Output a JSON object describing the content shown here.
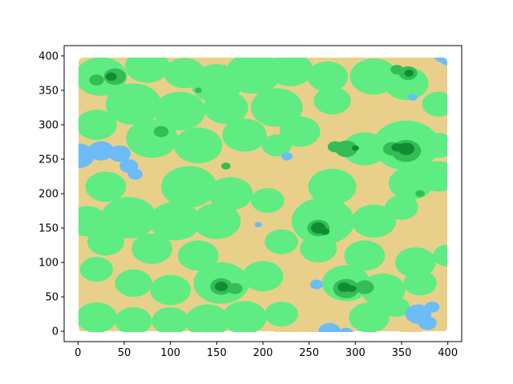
{
  "chart_data": {
    "type": "heatmap",
    "title": "",
    "xlabel": "",
    "ylabel": "",
    "xlim": [
      -15,
      415
    ],
    "ylim": [
      -15,
      415
    ],
    "x_ticks": [
      0,
      50,
      100,
      150,
      200,
      250,
      300,
      350,
      400
    ],
    "y_ticks": [
      0,
      50,
      100,
      150,
      200,
      250,
      300,
      350,
      400
    ],
    "grid": false,
    "legend": "none",
    "extent": [
      0,
      400,
      0,
      400
    ],
    "terrain_levels": [
      {
        "name": "water",
        "color": "#6cbcf7"
      },
      {
        "name": "sand",
        "color": "#e9d08a"
      },
      {
        "name": "grass",
        "color": "#5eec83"
      },
      {
        "name": "forest",
        "color": "#34bd55"
      },
      {
        "name": "dense-forest",
        "color": "#118c35"
      }
    ],
    "features": {
      "water": [
        {
          "x": 0,
          "y": 255,
          "r": 18
        },
        {
          "x": 25,
          "y": 262,
          "r": 14
        },
        {
          "x": 45,
          "y": 258,
          "r": 12
        },
        {
          "x": 55,
          "y": 240,
          "r": 10
        },
        {
          "x": 62,
          "y": 228,
          "r": 8
        },
        {
          "x": 395,
          "y": 400,
          "r": 10
        },
        {
          "x": 400,
          "y": 394,
          "r": 8
        },
        {
          "x": 368,
          "y": 25,
          "r": 14
        },
        {
          "x": 378,
          "y": 12,
          "r": 10
        },
        {
          "x": 383,
          "y": 35,
          "r": 8
        },
        {
          "x": 272,
          "y": 0,
          "r": 12
        },
        {
          "x": 290,
          "y": -3,
          "r": 8
        },
        {
          "x": 226,
          "y": 254,
          "r": 6
        },
        {
          "x": 258,
          "y": 68,
          "r": 7
        },
        {
          "x": 362,
          "y": 340,
          "r": 5
        },
        {
          "x": 195,
          "y": 155,
          "r": 4
        }
      ],
      "sand": [
        {
          "x": 0,
          "y": 100,
          "r": 42
        },
        {
          "x": 15,
          "y": 40,
          "r": 30
        },
        {
          "x": 70,
          "y": 235,
          "r": 24
        },
        {
          "x": 40,
          "y": 300,
          "r": 22
        },
        {
          "x": 210,
          "y": 230,
          "r": 45
        },
        {
          "x": 195,
          "y": 110,
          "r": 28
        },
        {
          "x": 240,
          "y": 0,
          "r": 28
        },
        {
          "x": 400,
          "y": 40,
          "r": 40
        },
        {
          "x": 360,
          "y": 20,
          "r": 24
        },
        {
          "x": 400,
          "y": 150,
          "r": 30
        },
        {
          "x": 330,
          "y": 300,
          "r": 28
        },
        {
          "x": 395,
          "y": 390,
          "r": 22
        },
        {
          "x": 350,
          "y": 395,
          "r": 22
        },
        {
          "x": 240,
          "y": 395,
          "r": 22
        },
        {
          "x": 290,
          "y": 250,
          "r": 18
        },
        {
          "x": 170,
          "y": 300,
          "r": 20
        },
        {
          "x": 260,
          "y": 300,
          "r": 18
        },
        {
          "x": 150,
          "y": 250,
          "r": 18
        },
        {
          "x": 120,
          "y": 60,
          "r": 16
        },
        {
          "x": 245,
          "y": 110,
          "r": 15
        },
        {
          "x": 95,
          "y": 140,
          "r": 16
        },
        {
          "x": 320,
          "y": 220,
          "r": 22
        },
        {
          "x": 280,
          "y": 60,
          "r": 15
        }
      ],
      "grass": [
        {
          "x": 25,
          "y": 370,
          "r": 28
        },
        {
          "x": 75,
          "y": 385,
          "r": 24
        },
        {
          "x": 115,
          "y": 375,
          "r": 22
        },
        {
          "x": 150,
          "y": 360,
          "r": 28
        },
        {
          "x": 190,
          "y": 375,
          "r": 30
        },
        {
          "x": 230,
          "y": 380,
          "r": 24
        },
        {
          "x": 270,
          "y": 370,
          "r": 22
        },
        {
          "x": 320,
          "y": 370,
          "r": 26
        },
        {
          "x": 355,
          "y": 360,
          "r": 24
        },
        {
          "x": 390,
          "y": 330,
          "r": 18
        },
        {
          "x": 60,
          "y": 330,
          "r": 30
        },
        {
          "x": 110,
          "y": 320,
          "r": 28
        },
        {
          "x": 160,
          "y": 325,
          "r": 24
        },
        {
          "x": 215,
          "y": 325,
          "r": 28
        },
        {
          "x": 275,
          "y": 335,
          "r": 20
        },
        {
          "x": 20,
          "y": 300,
          "r": 22
        },
        {
          "x": 80,
          "y": 280,
          "r": 28
        },
        {
          "x": 130,
          "y": 270,
          "r": 26
        },
        {
          "x": 180,
          "y": 285,
          "r": 24
        },
        {
          "x": 240,
          "y": 290,
          "r": 22
        },
        {
          "x": 215,
          "y": 270,
          "r": 16
        },
        {
          "x": 355,
          "y": 270,
          "r": 36
        },
        {
          "x": 310,
          "y": 265,
          "r": 24
        },
        {
          "x": 390,
          "y": 270,
          "r": 18
        },
        {
          "x": 390,
          "y": 225,
          "r": 22
        },
        {
          "x": 360,
          "y": 215,
          "r": 24
        },
        {
          "x": 30,
          "y": 210,
          "r": 22
        },
        {
          "x": 120,
          "y": 210,
          "r": 30
        },
        {
          "x": 165,
          "y": 200,
          "r": 24
        },
        {
          "x": 205,
          "y": 190,
          "r": 18
        },
        {
          "x": 275,
          "y": 210,
          "r": 26
        },
        {
          "x": 10,
          "y": 160,
          "r": 22
        },
        {
          "x": 55,
          "y": 165,
          "r": 30
        },
        {
          "x": 105,
          "y": 160,
          "r": 28
        },
        {
          "x": 150,
          "y": 160,
          "r": 26
        },
        {
          "x": 265,
          "y": 160,
          "r": 34
        },
        {
          "x": 320,
          "y": 160,
          "r": 24
        },
        {
          "x": 350,
          "y": 180,
          "r": 18
        },
        {
          "x": 30,
          "y": 130,
          "r": 20
        },
        {
          "x": 80,
          "y": 120,
          "r": 22
        },
        {
          "x": 130,
          "y": 110,
          "r": 22
        },
        {
          "x": 220,
          "y": 130,
          "r": 18
        },
        {
          "x": 260,
          "y": 120,
          "r": 20
        },
        {
          "x": 310,
          "y": 110,
          "r": 22
        },
        {
          "x": 365,
          "y": 100,
          "r": 22
        },
        {
          "x": 20,
          "y": 90,
          "r": 18
        },
        {
          "x": 60,
          "y": 70,
          "r": 20
        },
        {
          "x": 100,
          "y": 60,
          "r": 22
        },
        {
          "x": 155,
          "y": 70,
          "r": 30
        },
        {
          "x": 200,
          "y": 80,
          "r": 22
        },
        {
          "x": 290,
          "y": 70,
          "r": 26
        },
        {
          "x": 330,
          "y": 60,
          "r": 24
        },
        {
          "x": 370,
          "y": 70,
          "r": 18
        },
        {
          "x": 20,
          "y": 20,
          "r": 22
        },
        {
          "x": 60,
          "y": 15,
          "r": 20
        },
        {
          "x": 100,
          "y": 15,
          "r": 20
        },
        {
          "x": 140,
          "y": 15,
          "r": 24
        },
        {
          "x": 180,
          "y": 20,
          "r": 24
        },
        {
          "x": 220,
          "y": 25,
          "r": 18
        },
        {
          "x": 315,
          "y": 20,
          "r": 22
        },
        {
          "x": 345,
          "y": 35,
          "r": 14
        },
        {
          "x": 400,
          "y": 110,
          "r": 16
        }
      ],
      "forest": [
        {
          "x": 40,
          "y": 370,
          "r": 12
        },
        {
          "x": 20,
          "y": 365,
          "r": 8
        },
        {
          "x": 357,
          "y": 375,
          "r": 10
        },
        {
          "x": 345,
          "y": 380,
          "r": 7
        },
        {
          "x": 355,
          "y": 262,
          "r": 16
        },
        {
          "x": 340,
          "y": 265,
          "r": 10
        },
        {
          "x": 290,
          "y": 265,
          "r": 12
        },
        {
          "x": 278,
          "y": 268,
          "r": 8
        },
        {
          "x": 260,
          "y": 150,
          "r": 12
        },
        {
          "x": 290,
          "y": 62,
          "r": 14
        },
        {
          "x": 310,
          "y": 64,
          "r": 10
        },
        {
          "x": 155,
          "y": 65,
          "r": 12
        },
        {
          "x": 170,
          "y": 62,
          "r": 8
        },
        {
          "x": 90,
          "y": 290,
          "r": 8
        },
        {
          "x": 370,
          "y": 200,
          "r": 5
        },
        {
          "x": 130,
          "y": 350,
          "r": 4
        },
        {
          "x": 160,
          "y": 240,
          "r": 5
        }
      ],
      "dense-forest": [
        {
          "x": 36,
          "y": 370,
          "r": 6
        },
        {
          "x": 355,
          "y": 265,
          "r": 9
        },
        {
          "x": 345,
          "y": 267,
          "r": 6
        },
        {
          "x": 260,
          "y": 150,
          "r": 8
        },
        {
          "x": 267,
          "y": 145,
          "r": 5
        },
        {
          "x": 288,
          "y": 64,
          "r": 7
        },
        {
          "x": 296,
          "y": 62,
          "r": 5
        },
        {
          "x": 155,
          "y": 65,
          "r": 7
        },
        {
          "x": 358,
          "y": 375,
          "r": 5
        },
        {
          "x": 300,
          "y": 266,
          "r": 4
        }
      ]
    }
  }
}
